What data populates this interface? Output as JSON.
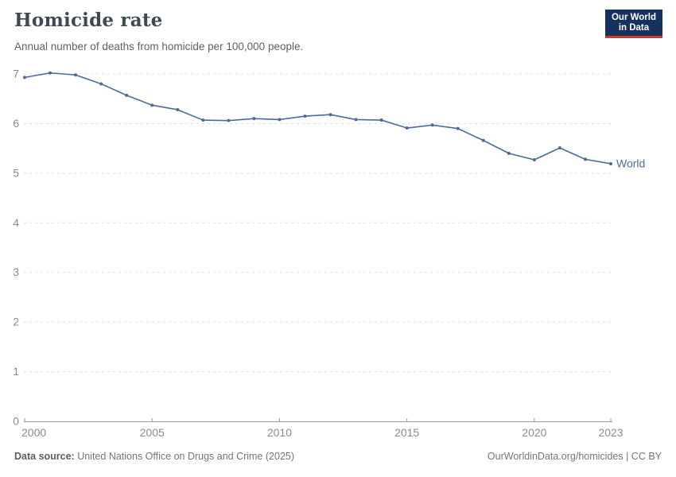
{
  "header": {
    "title": "Homicide rate",
    "subtitle": "Annual number of deaths from homicide per 100,000 people."
  },
  "logo": {
    "line1": "Our World",
    "line2": "in Data"
  },
  "chart_data": {
    "type": "line",
    "title": "Homicide rate",
    "xlabel": "",
    "ylabel": "",
    "x": [
      2000,
      2001,
      2002,
      2003,
      2004,
      2005,
      2006,
      2007,
      2008,
      2009,
      2010,
      2011,
      2012,
      2013,
      2014,
      2015,
      2016,
      2017,
      2018,
      2019,
      2020,
      2021,
      2022,
      2023
    ],
    "series": [
      {
        "name": "World",
        "values": [
          6.93,
          7.02,
          6.98,
          6.8,
          6.57,
          6.37,
          6.28,
          6.07,
          6.06,
          6.1,
          6.08,
          6.15,
          6.18,
          6.08,
          6.07,
          5.91,
          5.97,
          5.9,
          5.66,
          5.4,
          5.27,
          5.51,
          5.28,
          5.19
        ]
      }
    ],
    "ylim": [
      0,
      7
    ],
    "yticks": [
      0,
      1,
      2,
      3,
      4,
      5,
      6,
      7
    ],
    "xticks": [
      2000,
      2005,
      2010,
      2015,
      2020,
      2023
    ],
    "grid": "horizontal-dashed",
    "legend": "line-end-label"
  },
  "footer": {
    "source_label": "Data source:",
    "source_text": " United Nations Office on Drugs and Crime (2025)",
    "link": "OurWorldinData.org/homicides | CC BY"
  },
  "colors": {
    "line": "#4b6aa2",
    "grid": "#dddddd",
    "axis": "#9a9a9a",
    "tick_text": "#8b8b8b",
    "logo_bg": "#15315e",
    "logo_accent": "#cc3c2c"
  }
}
